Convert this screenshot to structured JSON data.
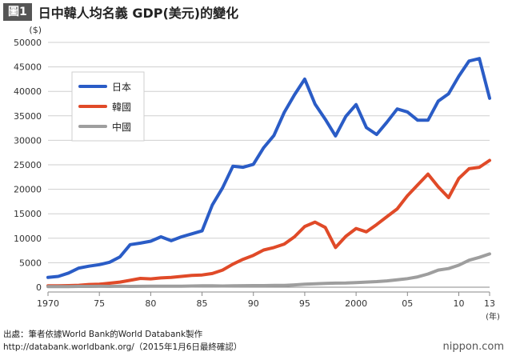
{
  "header": {
    "badge": "圖1",
    "title": "日中韓人均名義 GDP(美元)的變化"
  },
  "chart_data": {
    "type": "line",
    "ylabel": "($)",
    "xlabel": "(年)",
    "ylim": [
      0,
      50000
    ],
    "yticks": [
      0,
      5000,
      10000,
      15000,
      20000,
      25000,
      30000,
      35000,
      40000,
      45000,
      50000
    ],
    "xlim": [
      1970,
      2013
    ],
    "xticks": [
      {
        "x": 1970,
        "label": "1970"
      },
      {
        "x": 1975,
        "label": "75"
      },
      {
        "x": 1980,
        "label": "80"
      },
      {
        "x": 1985,
        "label": "85"
      },
      {
        "x": 1990,
        "label": "90"
      },
      {
        "x": 1995,
        "label": "95"
      },
      {
        "x": 2000,
        "label": "2000"
      },
      {
        "x": 2005,
        "label": "05"
      },
      {
        "x": 2010,
        "label": "10"
      },
      {
        "x": 2013,
        "label": "13"
      }
    ],
    "grid": true,
    "legend": "top-left",
    "x": [
      1970,
      1971,
      1972,
      1973,
      1974,
      1975,
      1976,
      1977,
      1978,
      1979,
      1980,
      1981,
      1982,
      1983,
      1984,
      1985,
      1986,
      1987,
      1988,
      1989,
      1990,
      1991,
      1992,
      1993,
      1994,
      1995,
      1996,
      1997,
      1998,
      1999,
      2000,
      2001,
      2002,
      2003,
      2004,
      2005,
      2006,
      2007,
      2008,
      2009,
      2010,
      2011,
      2012,
      2013
    ],
    "series": [
      {
        "name": "日本",
        "color": "#2a5cc6",
        "values": [
          2000,
          2200,
          2900,
          3900,
          4300,
          4600,
          5100,
          6200,
          8700,
          9000,
          9400,
          10300,
          9500,
          10300,
          10900,
          11500,
          16800,
          20300,
          24700,
          24500,
          25100,
          28500,
          31000,
          35700,
          39300,
          42500,
          37400,
          34300,
          30900,
          34900,
          37300,
          32600,
          31200,
          33700,
          36400,
          35800,
          34100,
          34100,
          38000,
          39500,
          43100,
          46200,
          46700,
          38600
        ]
      },
      {
        "name": "韓國",
        "color": "#e04a28",
        "values": [
          280,
          300,
          320,
          400,
          550,
          600,
          820,
          1050,
          1400,
          1800,
          1700,
          1900,
          2000,
          2200,
          2400,
          2500,
          2800,
          3500,
          4700,
          5700,
          6500,
          7600,
          8100,
          8800,
          10300,
          12400,
          13300,
          12200,
          8100,
          10400,
          12000,
          11300,
          12800,
          14400,
          16000,
          18700,
          20900,
          23100,
          20500,
          18300,
          22200,
          24200,
          24500,
          25900
        ]
      },
      {
        "name": "中國",
        "color": "#9e9e9e",
        "values": [
          110,
          120,
          130,
          160,
          160,
          180,
          165,
          190,
          160,
          180,
          200,
          200,
          200,
          220,
          250,
          290,
          280,
          250,
          280,
          310,
          320,
          330,
          370,
          380,
          470,
          610,
          710,
          780,
          830,
          870,
          950,
          1050,
          1140,
          1290,
          1510,
          1750,
          2100,
          2700,
          3500,
          3800,
          4500,
          5500,
          6100,
          6800
        ]
      }
    ]
  },
  "footer": {
    "source_line1": "出處：筆者依據World Bank的World Databank製作",
    "source_line2": "http://databank.worldbank.org/（2015年1月6日最終確認）",
    "brand": "nippon.com"
  }
}
